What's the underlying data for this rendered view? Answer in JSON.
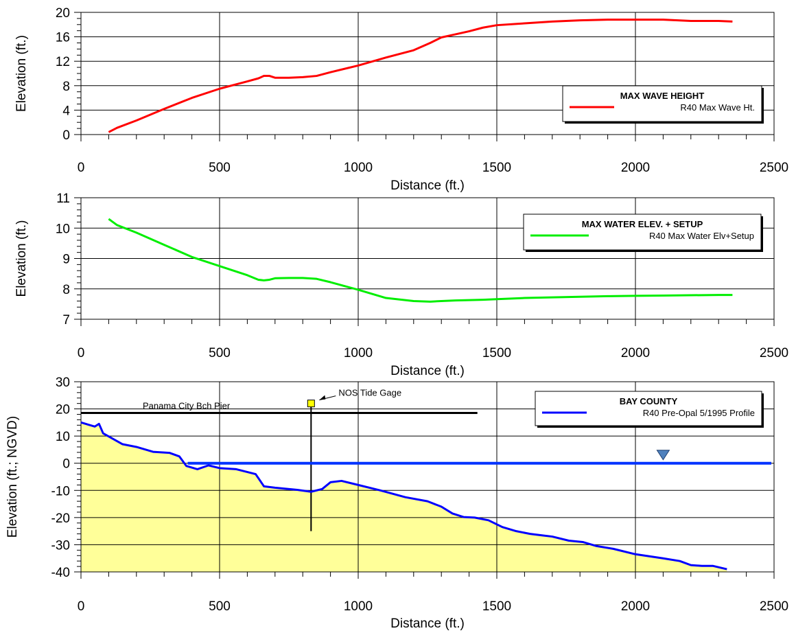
{
  "chart_data": [
    {
      "type": "line",
      "xlabel": "Distance (ft.)",
      "ylabel": "Elevation (ft.)",
      "xlim": [
        0,
        2500
      ],
      "ylim": [
        0,
        20
      ],
      "xticks": [
        0,
        500,
        1000,
        1500,
        2000,
        2500
      ],
      "yticks": [
        0,
        4,
        8,
        12,
        16,
        20
      ],
      "grid": true,
      "legend": {
        "title": "MAX WAVE HEIGHT",
        "position": "bottom-right",
        "entries": [
          "R40 Max Wave Ht."
        ]
      },
      "series": [
        {
          "name": "R40 Max Wave Ht.",
          "color": "#ff0000",
          "x": [
            100,
            130,
            200,
            300,
            400,
            500,
            600,
            640,
            660,
            680,
            700,
            750,
            800,
            850,
            900,
            1000,
            1100,
            1200,
            1260,
            1300,
            1350,
            1400,
            1450,
            1500,
            1600,
            1700,
            1800,
            1900,
            2000,
            2100,
            2200,
            2300,
            2350
          ],
          "y": [
            0.4,
            1.1,
            2.3,
            4.2,
            6.0,
            7.5,
            8.7,
            9.2,
            9.6,
            9.6,
            9.3,
            9.3,
            9.4,
            9.6,
            10.2,
            11.3,
            12.6,
            13.8,
            15.0,
            15.9,
            16.4,
            16.9,
            17.5,
            17.9,
            18.2,
            18.5,
            18.7,
            18.8,
            18.8,
            18.8,
            18.6,
            18.6,
            18.5
          ]
        }
      ]
    },
    {
      "type": "line",
      "xlabel": "Distance (ft.)",
      "ylabel": "Elevation (ft.)",
      "xlim": [
        0,
        2500
      ],
      "ylim": [
        7,
        11
      ],
      "xticks": [
        0,
        500,
        1000,
        1500,
        2000,
        2500
      ],
      "yticks": [
        7,
        8,
        9,
        10,
        11
      ],
      "grid": true,
      "legend": {
        "title": "MAX WATER ELEV. + SETUP",
        "position": "top-right",
        "entries": [
          "R40 Max Water Elv+Setup"
        ]
      },
      "series": [
        {
          "name": "R40 Max Water Elv+Setup",
          "color": "#00ee00",
          "x": [
            100,
            130,
            200,
            300,
            400,
            500,
            600,
            640,
            660,
            680,
            700,
            750,
            800,
            850,
            900,
            1000,
            1100,
            1200,
            1260,
            1300,
            1350,
            1400,
            1450,
            1500,
            1600,
            1700,
            1800,
            1900,
            2000,
            2100,
            2200,
            2300,
            2350
          ],
          "y": [
            10.3,
            10.1,
            9.85,
            9.45,
            9.05,
            8.75,
            8.45,
            8.3,
            8.28,
            8.3,
            8.35,
            8.36,
            8.36,
            8.33,
            8.22,
            7.97,
            7.7,
            7.6,
            7.58,
            7.6,
            7.62,
            7.63,
            7.64,
            7.66,
            7.7,
            7.72,
            7.74,
            7.76,
            7.77,
            7.78,
            7.79,
            7.8,
            7.8
          ]
        }
      ]
    },
    {
      "type": "area",
      "xlabel": "Distance (ft.)",
      "ylabel": "Elevation (ft.; NGVD)",
      "xlim": [
        0,
        2500
      ],
      "ylim": [
        -40,
        30
      ],
      "xticks": [
        0,
        500,
        1000,
        1500,
        2000,
        2500
      ],
      "yticks": [
        -40,
        -30,
        -20,
        -10,
        0,
        10,
        20,
        30
      ],
      "grid": true,
      "legend": {
        "title": "BAY COUNTY",
        "position": "top-right",
        "entries": [
          "R40 Pre-Opal 5/1995 Profile"
        ]
      },
      "series": [
        {
          "name": "R40 Pre-Opal 5/1995 Profile",
          "color": "#0000ff",
          "fill": "#ffff99",
          "x": [
            0,
            50,
            65,
            80,
            150,
            200,
            260,
            320,
            355,
            380,
            420,
            460,
            500,
            560,
            630,
            660,
            700,
            780,
            830,
            870,
            900,
            940,
            1000,
            1080,
            1170,
            1250,
            1300,
            1340,
            1380,
            1420,
            1470,
            1520,
            1570,
            1620,
            1660,
            1700,
            1760,
            1810,
            1860,
            1920,
            2000,
            2100,
            2160,
            2200,
            2240,
            2280,
            2330
          ],
          "y": [
            15,
            13.5,
            14.5,
            11,
            7,
            6,
            4.2,
            3.8,
            2.5,
            -1,
            -2.2,
            -0.8,
            -1.8,
            -2.2,
            -4,
            -8.5,
            -9,
            -9.8,
            -10.5,
            -9.5,
            -7,
            -6.5,
            -8,
            -10,
            -12.5,
            -14,
            -16,
            -18.5,
            -19.8,
            -20,
            -21,
            -23.5,
            -25,
            -26,
            -26.5,
            -27,
            -28.5,
            -29,
            -30.5,
            -31.5,
            -33.5,
            -35,
            -36,
            -37.5,
            -37.8,
            -37.8,
            -39
          ]
        }
      ],
      "water_level": {
        "x": [
          385,
          2500
        ],
        "y": 0,
        "color": "#0033ff"
      },
      "pier": {
        "label": "Panama City Bch Pier",
        "x": [
          0,
          1430
        ],
        "y": 18.5
      },
      "tide_gage": {
        "label": "NOS Tide Gage",
        "x": 830,
        "y": 22,
        "pile_bottom": -25
      },
      "water_marker_x": 2100
    }
  ]
}
